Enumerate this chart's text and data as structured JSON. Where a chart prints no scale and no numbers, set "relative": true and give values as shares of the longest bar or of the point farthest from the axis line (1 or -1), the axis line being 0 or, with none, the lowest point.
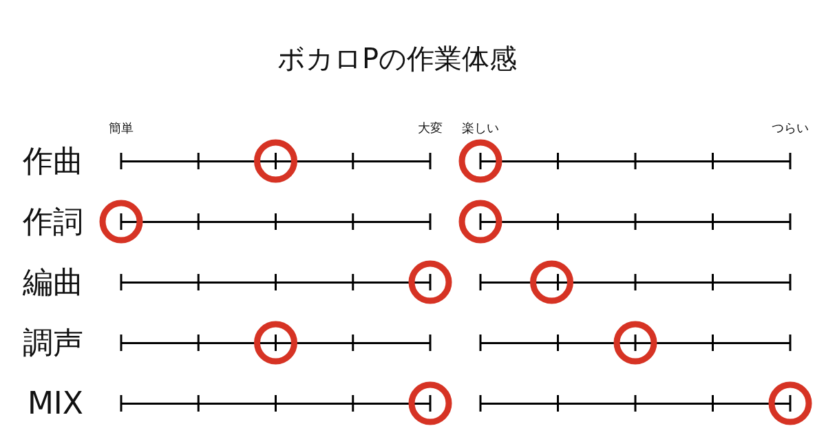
{
  "chart_data": [
    {
      "type": "scatter",
      "title": "ボカロPの作業体感",
      "orientation": "horizontal",
      "relative": true,
      "categories": [
        "作曲",
        "作詞",
        "編曲",
        "調声",
        "MIX"
      ],
      "series": [
        {
          "color": "#d63324",
          "values": [
            0.5,
            0,
            1,
            0.5,
            1
          ]
        }
      ],
      "marker": "circle",
      "annotations": [
        "簡単",
        "大変"
      ],
      "grid": "y"
    },
    {
      "type": "scatter",
      "orientation": "horizontal",
      "relative": true,
      "categories": [
        null,
        null,
        null,
        null,
        null
      ],
      "series": [
        {
          "color": "#d63324",
          "values": [
            0,
            0,
            0.23,
            0.5,
            1
          ]
        }
      ],
      "marker": "circle",
      "annotations": [
        "楽しい",
        "つらい"
      ],
      "grid": "y"
    }
  ]
}
